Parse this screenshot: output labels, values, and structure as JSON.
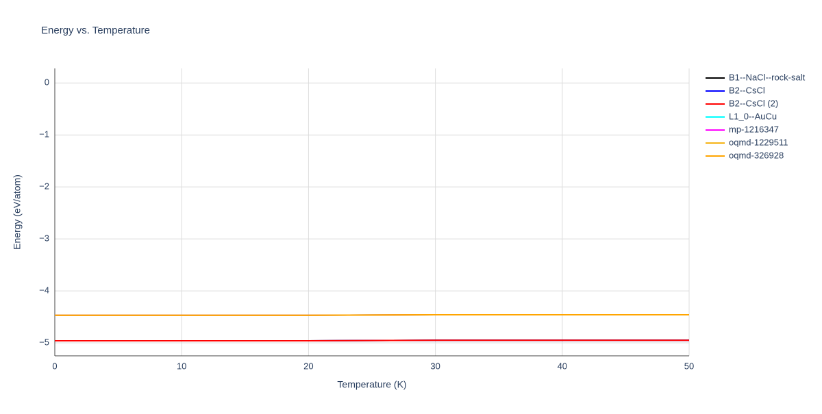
{
  "chart_data": {
    "type": "line",
    "title": "Energy vs. Temperature",
    "x_label": "Temperature (K)",
    "y_label": "Energy (eV/atom)",
    "x": [
      0,
      10,
      20,
      30,
      40,
      50
    ],
    "series": [
      {
        "name": "B1--NaCl--rock-salt",
        "color": "#000000",
        "values": [
          -4.96,
          -4.96,
          -4.96,
          -4.95,
          -4.95,
          -4.95
        ]
      },
      {
        "name": "B2--CsCl",
        "color": "#0000ff",
        "values": [
          -4.96,
          -4.96,
          -4.96,
          -4.95,
          -4.95,
          -4.95
        ]
      },
      {
        "name": "B2--CsCl (2)",
        "color": "#ff0000",
        "values": [
          -4.96,
          -4.96,
          -4.96,
          -4.95,
          -4.95,
          -4.95
        ]
      },
      {
        "name": "L1_0--AuCu",
        "color": "#00ffff",
        "values": [
          -4.47,
          -4.47,
          -4.47,
          -4.46,
          -4.46,
          -4.46
        ]
      },
      {
        "name": "mp-1216347",
        "color": "#ff00ff",
        "values": [
          -4.47,
          -4.47,
          -4.47,
          -4.46,
          -4.46,
          -4.46
        ]
      },
      {
        "name": "oqmd-1229511",
        "color": "#f5b316",
        "values": [
          -4.47,
          -4.47,
          -4.47,
          -4.46,
          -4.46,
          -4.46
        ]
      },
      {
        "name": "oqmd-326928",
        "color": "#ffa500",
        "values": [
          -4.47,
          -4.47,
          -4.47,
          -4.46,
          -4.46,
          -4.46
        ]
      }
    ],
    "xlim": [
      0,
      50
    ],
    "xticks": [
      0,
      10,
      20,
      30,
      40,
      50
    ],
    "ylim": [
      -5.25,
      0.28
    ],
    "yticks": [
      {
        "value": 0,
        "label": "0"
      },
      {
        "value": -1,
        "label": "−1"
      },
      {
        "value": -2,
        "label": "−2"
      },
      {
        "value": -3,
        "label": "−3"
      },
      {
        "value": -4,
        "label": "−4"
      },
      {
        "value": -5,
        "label": "−5"
      }
    ],
    "grid": true,
    "legend": "right"
  }
}
